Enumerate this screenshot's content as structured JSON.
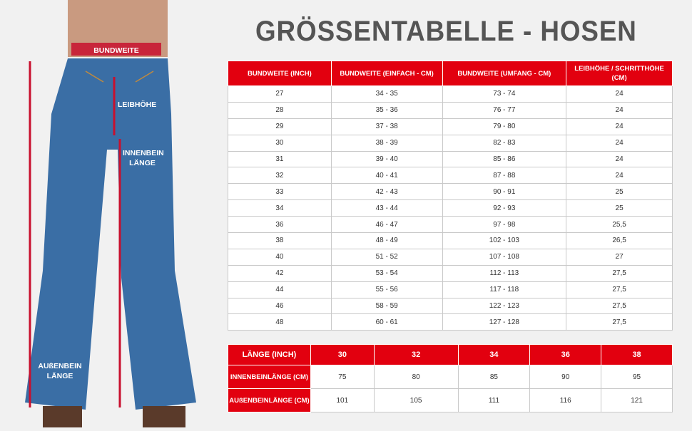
{
  "title": "GRÖSSENTABELLE - HOSEN",
  "figure": {
    "bundweite": "BUNDWEITE",
    "leibhoehe": "LEIBHÖHE",
    "innenbein": "INNENBEIN LÄNGE",
    "aussenbein": "AUßENBEIN LÄNGE",
    "accent": "#c8102e"
  },
  "size_table": {
    "headers": [
      "BUNDWEITE (INCH)",
      "BUNDWEITE (EINFACH - CM)",
      "BUNDWEITE (UMFANG - CM)",
      "LEIBHÖHE / SCHRITTHÖHE (CM)"
    ],
    "rows": [
      [
        "27",
        "34 - 35",
        "73 - 74",
        "24"
      ],
      [
        "28",
        "35 - 36",
        "76 - 77",
        "24"
      ],
      [
        "29",
        "37 - 38",
        "79 - 80",
        "24"
      ],
      [
        "30",
        "38 - 39",
        "82 - 83",
        "24"
      ],
      [
        "31",
        "39 - 40",
        "85 - 86",
        "24"
      ],
      [
        "32",
        "40 - 41",
        "87 - 88",
        "24"
      ],
      [
        "33",
        "42 - 43",
        "90 - 91",
        "25"
      ],
      [
        "34",
        "43 - 44",
        "92 - 93",
        "25"
      ],
      [
        "36",
        "46 - 47",
        "97 - 98",
        "25,5"
      ],
      [
        "38",
        "48 - 49",
        "102 - 103",
        "26,5"
      ],
      [
        "40",
        "51 - 52",
        "107 - 108",
        "27"
      ],
      [
        "42",
        "53 - 54",
        "112 - 113",
        "27,5"
      ],
      [
        "44",
        "55 - 56",
        "117 - 118",
        "27,5"
      ],
      [
        "46",
        "58 - 59",
        "122 - 123",
        "27,5"
      ],
      [
        "48",
        "60 - 61",
        "127 - 128",
        "27,5"
      ]
    ]
  },
  "length_table": {
    "header": "LÄNGE (INCH)",
    "lengths": [
      "30",
      "32",
      "34",
      "36",
      "38"
    ],
    "rows": [
      {
        "label": "INNENBEINLÄNGE (CM)",
        "values": [
          "75",
          "80",
          "85",
          "90",
          "95"
        ]
      },
      {
        "label": "AUßENBEINLÄNGE (CM)",
        "values": [
          "101",
          "105",
          "111",
          "116",
          "121"
        ]
      }
    ]
  },
  "colors": {
    "header_red": "#e2000f",
    "title_gray": "#555555"
  }
}
